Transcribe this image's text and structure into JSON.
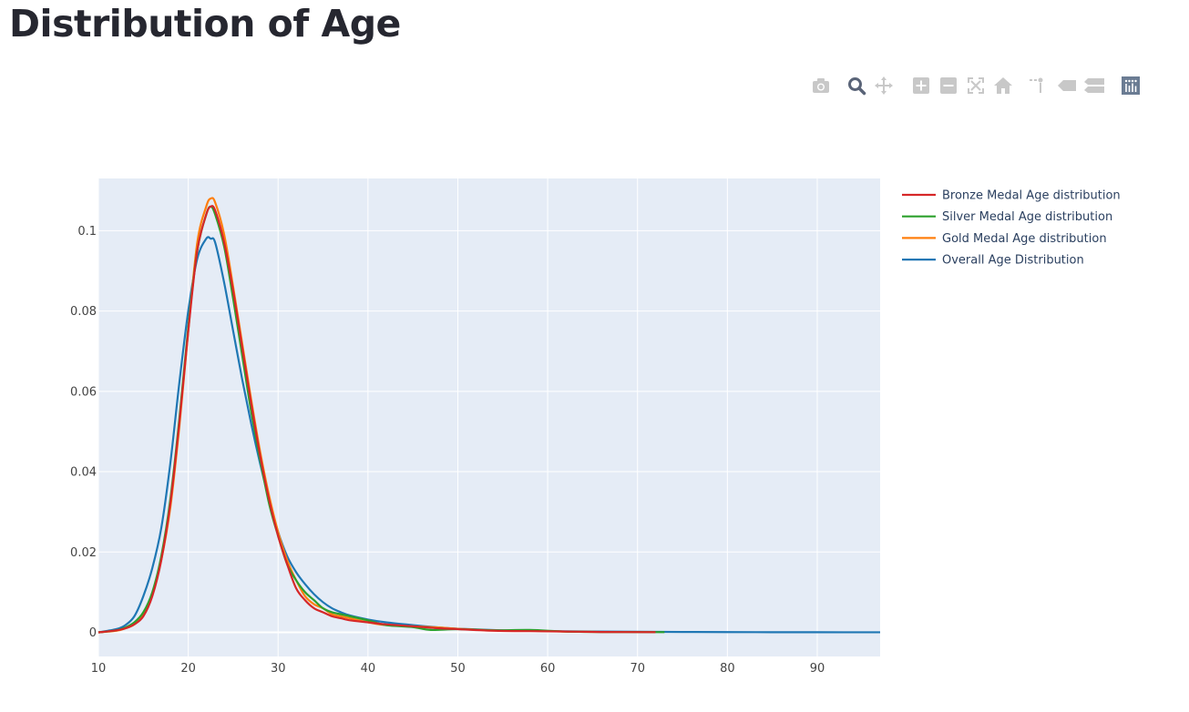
{
  "page": {
    "title": "Distribution of Age"
  },
  "modebar": {
    "buttons": [
      "camera-icon",
      "zoom-icon",
      "pan-icon",
      "zoom-in-icon",
      "zoom-out-icon",
      "autoscale-icon",
      "reset-axes-icon",
      "spike-lines-icon",
      "hover-closest-icon",
      "hover-compare-icon",
      "plotly-logo-icon"
    ]
  },
  "chart_data": {
    "type": "line",
    "title": "",
    "xlabel": "",
    "ylabel": "",
    "xlim": [
      10,
      97
    ],
    "ylim": [
      -0.006,
      0.113
    ],
    "x_ticks": [
      10,
      20,
      30,
      40,
      50,
      60,
      70,
      80,
      90
    ],
    "y_ticks": [
      0,
      0.02,
      0.04,
      0.06,
      0.08,
      0.1
    ],
    "y_tick_labels": [
      "0",
      "0.02",
      "0.04",
      "0.06",
      "0.08",
      "0.1"
    ],
    "grid": true,
    "legend_position": "top-right",
    "series": [
      {
        "name": "Bronze Medal Age distribution",
        "color": "#d62728",
        "x": [
          10,
          12,
          13,
          14,
          15,
          16,
          17,
          18,
          19,
          20,
          21,
          22,
          22.5,
          23,
          24,
          25,
          26,
          27,
          28,
          29,
          30,
          31,
          32,
          33,
          34,
          35,
          36,
          37,
          38,
          40,
          42,
          45,
          48,
          50,
          54,
          58,
          62,
          66,
          72
        ],
        "y": [
          0,
          0.0005,
          0.001,
          0.002,
          0.004,
          0.009,
          0.018,
          0.032,
          0.052,
          0.075,
          0.095,
          0.104,
          0.106,
          0.105,
          0.097,
          0.085,
          0.071,
          0.057,
          0.044,
          0.033,
          0.024,
          0.017,
          0.011,
          0.008,
          0.006,
          0.005,
          0.004,
          0.0035,
          0.003,
          0.0025,
          0.002,
          0.0015,
          0.001,
          0.0008,
          0.0004,
          0.0003,
          0.0002,
          0.0001,
          5e-05
        ]
      },
      {
        "name": "Silver Medal Age distribution",
        "color": "#2ca02c",
        "x": [
          10,
          12,
          13,
          14,
          15,
          16,
          17,
          18,
          19,
          20,
          21,
          22,
          22.5,
          23,
          24,
          25,
          26,
          27,
          28,
          29,
          30,
          31,
          32,
          33,
          34,
          35,
          36,
          37,
          38,
          40,
          42,
          45,
          47,
          50,
          54,
          58,
          62,
          66,
          73
        ],
        "y": [
          0,
          0.0005,
          0.0012,
          0.0025,
          0.005,
          0.01,
          0.019,
          0.033,
          0.053,
          0.076,
          0.095,
          0.104,
          0.106,
          0.104,
          0.096,
          0.083,
          0.069,
          0.055,
          0.043,
          0.032,
          0.024,
          0.017,
          0.013,
          0.01,
          0.008,
          0.006,
          0.005,
          0.0045,
          0.004,
          0.003,
          0.0018,
          0.0013,
          0.0006,
          0.0008,
          0.0005,
          0.0006,
          0.0002,
          0.0001,
          5e-05
        ]
      },
      {
        "name": "Gold Medal Age distribution",
        "color": "#ff7f0e",
        "x": [
          10,
          12,
          13,
          14,
          15,
          16,
          17,
          18,
          19,
          20,
          21,
          22,
          22.5,
          23,
          24,
          25,
          26,
          27,
          28,
          29,
          30,
          31,
          32,
          33,
          34,
          35,
          36,
          37,
          38,
          40,
          42,
          45,
          48,
          50,
          54,
          58,
          62,
          66,
          72
        ],
        "y": [
          0,
          0.0004,
          0.001,
          0.002,
          0.0045,
          0.0095,
          0.018,
          0.031,
          0.051,
          0.075,
          0.097,
          0.106,
          0.108,
          0.107,
          0.099,
          0.086,
          0.072,
          0.058,
          0.045,
          0.034,
          0.025,
          0.018,
          0.013,
          0.009,
          0.007,
          0.006,
          0.0045,
          0.004,
          0.0035,
          0.0025,
          0.0018,
          0.0015,
          0.0012,
          0.0009,
          0.0005,
          0.0004,
          0.0002,
          0.0001,
          5e-05
        ]
      },
      {
        "name": "Overall Age Distribution",
        "color": "#1f77b4",
        "x": [
          10,
          12,
          13,
          14,
          15,
          16,
          17,
          18,
          19,
          20,
          21,
          22,
          22.5,
          23,
          24,
          25,
          26,
          27,
          28,
          29,
          30,
          31,
          32,
          33,
          34,
          35,
          36,
          37,
          38,
          40,
          42,
          45,
          48,
          50,
          55,
          60,
          65,
          70,
          75,
          80,
          85,
          90,
          97
        ],
        "y": [
          0,
          0.0008,
          0.0018,
          0.004,
          0.009,
          0.016,
          0.026,
          0.042,
          0.062,
          0.08,
          0.093,
          0.098,
          0.098,
          0.097,
          0.087,
          0.075,
          0.063,
          0.052,
          0.042,
          0.033,
          0.025,
          0.019,
          0.015,
          0.012,
          0.0095,
          0.0075,
          0.006,
          0.005,
          0.0042,
          0.0032,
          0.0025,
          0.0018,
          0.0012,
          0.0009,
          0.0005,
          0.0003,
          0.0002,
          0.00015,
          0.0001,
          6e-05,
          4e-05,
          3e-05,
          2e-05
        ]
      }
    ]
  }
}
